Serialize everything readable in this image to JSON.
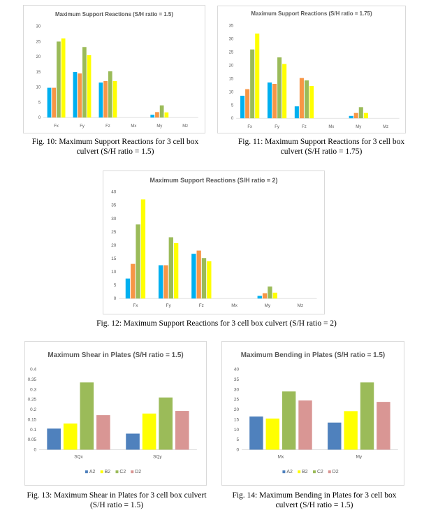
{
  "colors": {
    "Fx_reactions": [
      "#00b0f0",
      "#f79646",
      "#9bbb59",
      "#ffff00"
    ],
    "plates": [
      "#4f81bd",
      "#ffff00",
      "#9bbb59",
      "#d99694"
    ]
  },
  "chart_data": [
    {
      "id": "fig10",
      "type": "bar",
      "title": "Maximum Support Reactions (S/H ratio = 1.5)",
      "categories": [
        "Fx",
        "Fy",
        "Fz",
        "Mx",
        "My",
        "Mz"
      ],
      "yticks": [
        "0",
        "5",
        "10",
        "15",
        "20",
        "25",
        "30"
      ],
      "ylim": [
        0,
        30
      ],
      "series": [
        {
          "values": [
            9.8,
            15,
            11.5,
            0,
            0.9,
            0
          ]
        },
        {
          "values": [
            9.8,
            14.5,
            12,
            0,
            1.8,
            0
          ]
        },
        {
          "values": [
            25,
            23.2,
            15.2,
            0,
            4,
            0
          ]
        },
        {
          "values": [
            26,
            20.5,
            12,
            0,
            1.7,
            0
          ]
        }
      ],
      "legend": false,
      "grid": false
    },
    {
      "id": "fig11",
      "type": "bar",
      "title": "Maximum Support Reactions (S/H ratio = 1.75)",
      "categories": [
        "Fx",
        "Fy",
        "Fz",
        "Mx",
        "My",
        "Mz"
      ],
      "yticks": [
        "0",
        "5",
        "10",
        "15",
        "20",
        "25",
        "30",
        "35"
      ],
      "ylim": [
        0,
        35
      ],
      "series": [
        {
          "values": [
            8.5,
            13.5,
            4.5,
            0,
            0.9,
            0
          ]
        },
        {
          "values": [
            11,
            13,
            15.2,
            0,
            2,
            0
          ]
        },
        {
          "values": [
            26,
            23,
            14.3,
            0,
            4.2,
            0
          ]
        },
        {
          "values": [
            32,
            20.5,
            12.2,
            0,
            2,
            0
          ]
        }
      ],
      "legend": false,
      "grid": false
    },
    {
      "id": "fig12",
      "type": "bar",
      "title": "Maximum Support Reactions (S/H ratio = 2)",
      "categories": [
        "Fx",
        "Fy",
        "Fz",
        "Mx",
        "My",
        "Mz"
      ],
      "yticks": [
        "0",
        "5",
        "10",
        "15",
        "20",
        "25",
        "30",
        "35",
        "40"
      ],
      "ylim": [
        0,
        40
      ],
      "series": [
        {
          "values": [
            7.5,
            12.5,
            16.8,
            0,
            1,
            0
          ]
        },
        {
          "values": [
            13,
            12.5,
            18,
            0,
            2,
            0
          ]
        },
        {
          "values": [
            27.8,
            23,
            15.2,
            0,
            4.5,
            0
          ]
        },
        {
          "values": [
            37.2,
            20.8,
            14,
            0,
            2.2,
            0
          ]
        }
      ],
      "legend": false,
      "grid": false
    },
    {
      "id": "fig13",
      "type": "bar",
      "title": "Maximum Shear in Plates (S/H ratio = 1.5)",
      "categories": [
        "SQx",
        "SQy"
      ],
      "yticks": [
        "0",
        "0.05",
        "0.1",
        "0.15",
        "0.2",
        "0.25",
        "0.3",
        "0.35",
        "0.4"
      ],
      "ylim": [
        0,
        0.4
      ],
      "series": [
        {
          "name": "A2",
          "values": [
            0.105,
            0.08
          ]
        },
        {
          "name": "B2",
          "values": [
            0.13,
            0.18
          ]
        },
        {
          "name": "C2",
          "values": [
            0.335,
            0.26
          ]
        },
        {
          "name": "D2",
          "values": [
            0.172,
            0.193
          ]
        }
      ],
      "legend": true,
      "grid": false
    },
    {
      "id": "fig14",
      "type": "bar",
      "title": "Maximum Bending in Plates (S/H ratio = 1.5)",
      "categories": [
        "Mx",
        "My"
      ],
      "yticks": [
        "0",
        "5",
        "10",
        "15",
        "20",
        "25",
        "30",
        "35",
        "40"
      ],
      "ylim": [
        0,
        40
      ],
      "series": [
        {
          "name": "A2",
          "values": [
            16.5,
            13.5
          ]
        },
        {
          "name": "B2",
          "values": [
            15.5,
            19.2
          ]
        },
        {
          "name": "C2",
          "values": [
            29,
            33.5
          ]
        },
        {
          "name": "D2",
          "values": [
            24.5,
            23.8
          ]
        }
      ],
      "legend": true,
      "grid": false
    }
  ],
  "captions": {
    "fig10_line1": "Fig. 10: Maximum Support Reactions for 3 cell box",
    "fig10_line2": "culvert (S/H ratio = 1.5)",
    "fig11_line1": "Fig. 11: Maximum Support Reactions for 3 cell box",
    "fig11_line2": "culvert (S/H ratio = 1.75)",
    "fig12_line1": "Fig. 12: Maximum Support Reactions for 3 cell box culvert (S/H ratio = 2)",
    "fig13_line1": "Fig. 13: Maximum Shear in Plates for 3 cell box culvert",
    "fig13_line2": "(S/H ratio = 1.5)",
    "fig14_line1": "Fig. 14: Maximum Bending in Plates for 3 cell box",
    "fig14_line2": "culvert  (S/H ratio = 1.5)"
  }
}
